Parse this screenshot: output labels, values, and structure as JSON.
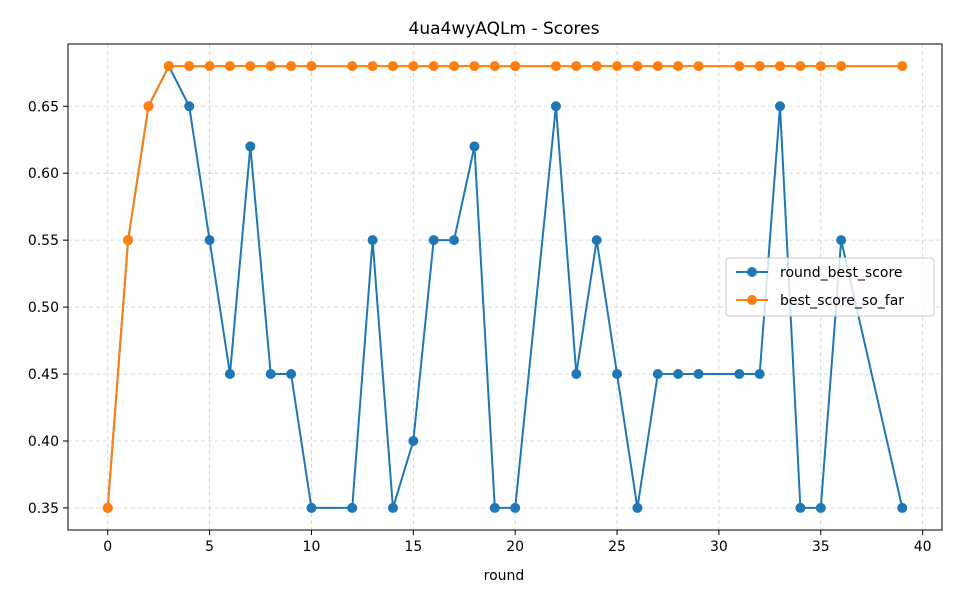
{
  "chart_data": {
    "type": "line",
    "title": "4ua4wyAQLm - Scores",
    "xlabel": "round",
    "ylabel": "",
    "xlim": [
      -1.95,
      40.95
    ],
    "ylim": [
      0.3335,
      0.6965
    ],
    "xticks": [
      0,
      5,
      10,
      15,
      20,
      25,
      30,
      35,
      40
    ],
    "yticks": [
      0.35,
      0.4,
      0.45,
      0.5,
      0.55,
      0.6,
      0.65
    ],
    "ytick_labels": [
      "0.35",
      "0.40",
      "0.45",
      "0.50",
      "0.55",
      "0.60",
      "0.65"
    ],
    "grid": true,
    "legend_position": "center-right",
    "series": [
      {
        "name": "round_best_score",
        "color": "#1f77b4",
        "x": [
          0,
          1,
          2,
          3,
          4,
          5,
          6,
          7,
          8,
          9,
          10,
          12,
          13,
          14,
          15,
          16,
          17,
          18,
          19,
          20,
          22,
          23,
          24,
          25,
          26,
          27,
          28,
          29,
          31,
          32,
          33,
          34,
          35,
          36,
          39
        ],
        "values": [
          0.35,
          0.55,
          0.65,
          0.68,
          0.65,
          0.55,
          0.45,
          0.62,
          0.45,
          0.45,
          0.35,
          0.35,
          0.55,
          0.35,
          0.4,
          0.55,
          0.55,
          0.62,
          0.35,
          0.35,
          0.65,
          0.45,
          0.55,
          0.45,
          0.35,
          0.45,
          0.45,
          0.45,
          0.45,
          0.45,
          0.65,
          0.35,
          0.35,
          0.55,
          0.35
        ]
      },
      {
        "name": "best_score_so_far",
        "color": "#ff7f0e",
        "x": [
          0,
          1,
          2,
          3,
          4,
          5,
          6,
          7,
          8,
          9,
          10,
          12,
          13,
          14,
          15,
          16,
          17,
          18,
          19,
          20,
          22,
          23,
          24,
          25,
          26,
          27,
          28,
          29,
          31,
          32,
          33,
          34,
          35,
          36,
          39
        ],
        "values": [
          0.35,
          0.55,
          0.65,
          0.68,
          0.68,
          0.68,
          0.68,
          0.68,
          0.68,
          0.68,
          0.68,
          0.68,
          0.68,
          0.68,
          0.68,
          0.68,
          0.68,
          0.68,
          0.68,
          0.68,
          0.68,
          0.68,
          0.68,
          0.68,
          0.68,
          0.68,
          0.68,
          0.68,
          0.68,
          0.68,
          0.68,
          0.68,
          0.68,
          0.68,
          0.68
        ]
      }
    ]
  }
}
